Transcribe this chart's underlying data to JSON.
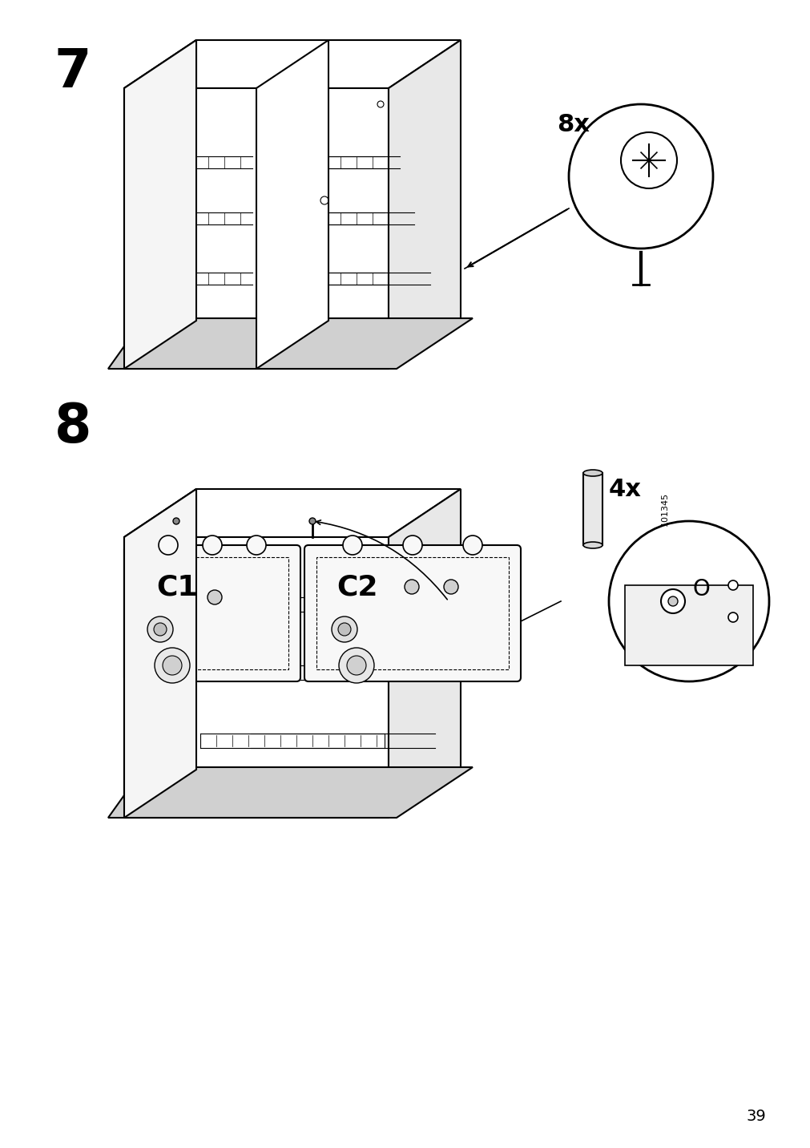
{
  "page_number": "39",
  "step7_label": "7",
  "step8_label": "8",
  "multiply_label_1": "8x",
  "multiply_label_2": "4x",
  "part_label_c1": "C1",
  "part_label_c2": "C2",
  "part_number": "101345",
  "bg_color": "#ffffff",
  "line_color": "#000000",
  "light_gray": "#cccccc",
  "medium_gray": "#888888",
  "dashed_color": "#555555"
}
